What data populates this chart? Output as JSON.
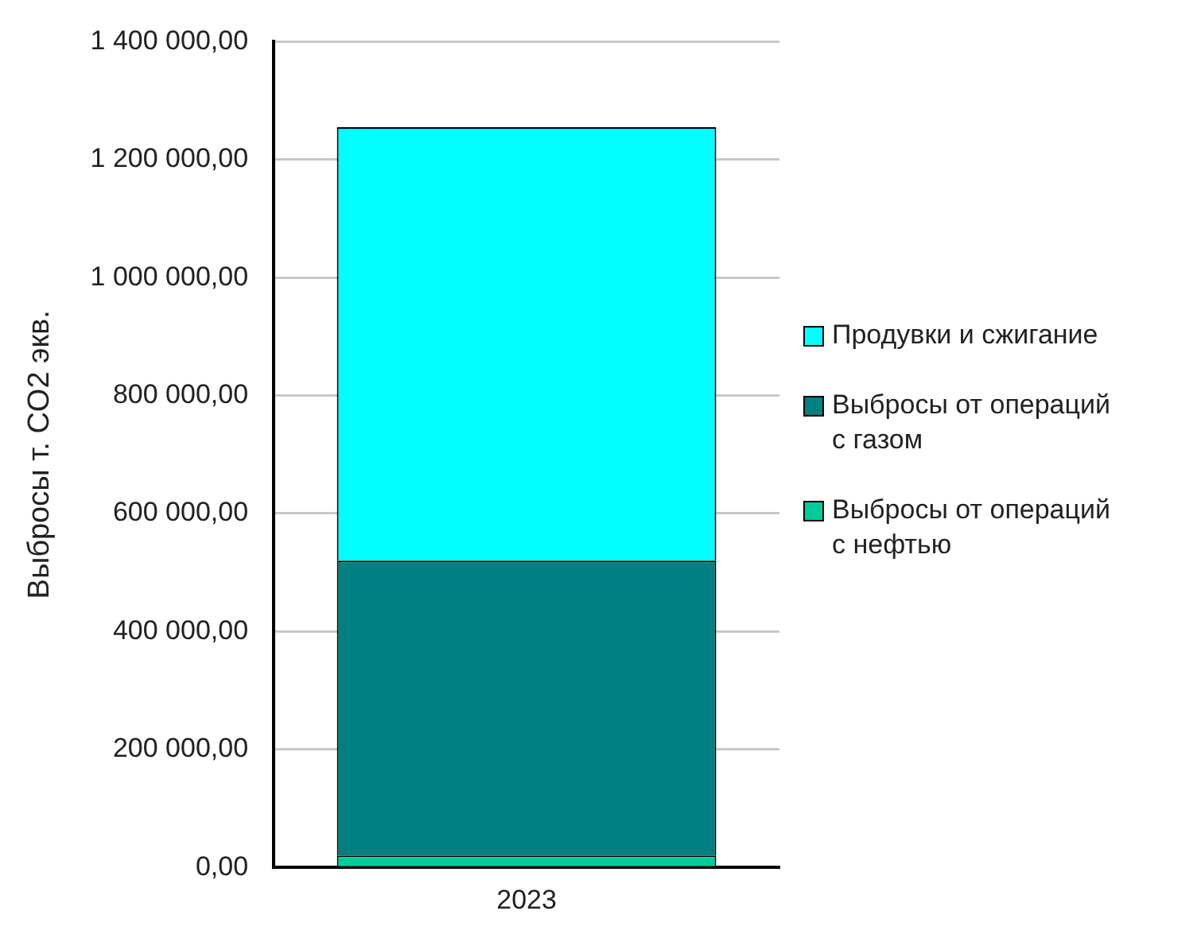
{
  "chart_data": {
    "type": "bar",
    "stacked": true,
    "ylabel": "Выбросы т. CO2 экв.",
    "categories": [
      "2023"
    ],
    "series": [
      {
        "name": "Выбросы от операций с нефтью",
        "color": "#00cc99",
        "values": [
          20000
        ]
      },
      {
        "name": "Выбросы от операций с газом",
        "color": "#008080",
        "values": [
          500000
        ]
      },
      {
        "name": "Продувки и сжигание",
        "color": "#00ffff",
        "values": [
          735000
        ]
      }
    ],
    "ylim": [
      0,
      1400000
    ],
    "yticks": [
      {
        "value": 0,
        "label": "0,00"
      },
      {
        "value": 200000,
        "label": "200 000,00"
      },
      {
        "value": 400000,
        "label": "400 000,00"
      },
      {
        "value": 600000,
        "label": "600 000,00"
      },
      {
        "value": 800000,
        "label": "800 000,00"
      },
      {
        "value": 1000000,
        "label": "1 000 000,00"
      },
      {
        "value": 1200000,
        "label": "1 200 000,00"
      },
      {
        "value": 1400000,
        "label": "1 400 000,00"
      }
    ],
    "grid": "y",
    "legend": "right"
  }
}
